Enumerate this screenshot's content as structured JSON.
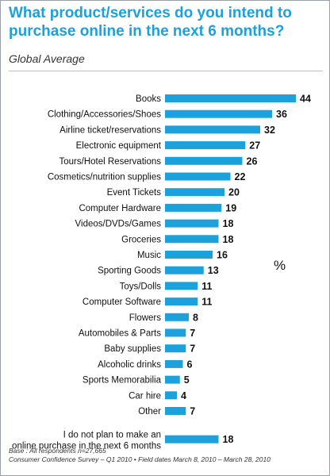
{
  "header": {
    "title": "What product/services do you intend to purchase online in the next 6 months?",
    "subtitle": "Global Average"
  },
  "footer": {
    "base": "Base : All respondents n=27,665",
    "source": "Consumer Confidence Survey – Q1 2010 • Field dates March 8, 2010 – March 28, 2010"
  },
  "colors": {
    "accent": "#1ba1dc",
    "bar": "#1ba1dc"
  },
  "chart_data": {
    "type": "bar",
    "orientation": "horizontal",
    "title": "What product/services do you intend to purchase online in the next 6 months?",
    "subtitle": "Global Average",
    "unit_label": "%",
    "categories": [
      "Books",
      "Clothing/Accessories/Shoes",
      "Airline ticket/reservations",
      "Electronic equipment",
      "Tours/Hotel Reservations",
      "Cosmetics/nutrition supplies",
      "Event Tickets",
      "Computer Hardware",
      "Videos/DVDs/Games",
      "Groceries",
      "Music",
      "Sporting Goods",
      "Toys/Dolls",
      "Computer Software",
      "Flowers",
      "Automobiles & Parts",
      "Baby supplies",
      "Alcoholic drinks",
      "Sports Memorabilia",
      "Car hire",
      "Other",
      "I do not plan to make an online purchase in the next 6 months"
    ],
    "values": [
      44,
      36,
      32,
      27,
      26,
      22,
      20,
      19,
      18,
      18,
      16,
      13,
      11,
      11,
      8,
      7,
      7,
      6,
      5,
      4,
      7,
      18
    ],
    "xlim": [
      0,
      44
    ],
    "grid": false,
    "legend": "none"
  }
}
